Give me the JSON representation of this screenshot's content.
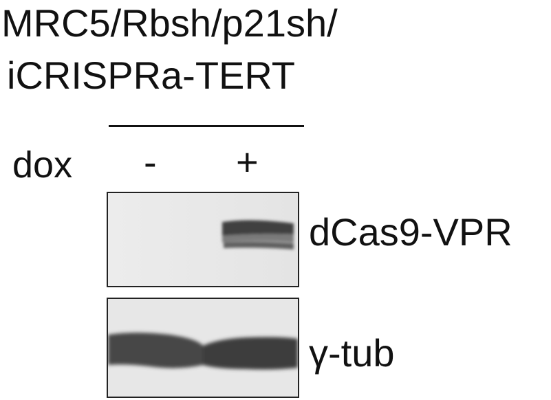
{
  "figure": {
    "title_line1": "MRC5/Rbsh/p21sh/",
    "title_line2": "iCRISPRa-TERT",
    "treatment_label": "dox",
    "lanes": [
      "-",
      "+"
    ],
    "blots": [
      {
        "label": "dCas9-VPR"
      },
      {
        "label": "γ-tub"
      }
    ]
  }
}
